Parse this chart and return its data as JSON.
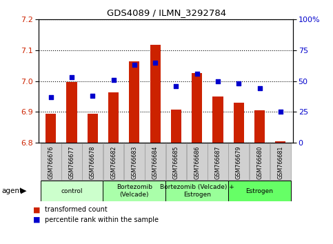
{
  "title": "GDS4089 / ILMN_3292784",
  "samples": [
    "GSM766676",
    "GSM766677",
    "GSM766678",
    "GSM766682",
    "GSM766683",
    "GSM766684",
    "GSM766685",
    "GSM766686",
    "GSM766687",
    "GSM766679",
    "GSM766680",
    "GSM766681"
  ],
  "transformed_count": [
    6.895,
    6.998,
    6.895,
    6.963,
    7.065,
    7.118,
    6.908,
    7.027,
    6.95,
    6.93,
    6.905,
    6.805
  ],
  "percentile_rank": [
    37,
    53,
    38,
    51,
    63,
    65,
    46,
    56,
    50,
    48,
    44,
    25
  ],
  "bar_base": 6.8,
  "ylim_left": [
    6.8,
    7.2
  ],
  "ylim_right": [
    0,
    100
  ],
  "yticks_left": [
    6.8,
    6.9,
    7.0,
    7.1,
    7.2
  ],
  "yticks_right": [
    0,
    25,
    50,
    75,
    100
  ],
  "ytick_labels_right": [
    "0",
    "25",
    "50",
    "75",
    "100%"
  ],
  "groups": [
    {
      "label": "control",
      "start": 0,
      "end": 3,
      "color": "#ccffcc"
    },
    {
      "label": "Bortezomib\n(Velcade)",
      "start": 3,
      "end": 6,
      "color": "#aaffaa"
    },
    {
      "label": "Bortezomib (Velcade) +\nEstrogen",
      "start": 6,
      "end": 9,
      "color": "#99ff99"
    },
    {
      "label": "Estrogen",
      "start": 9,
      "end": 12,
      "color": "#66ff66"
    }
  ],
  "bar_color": "#cc2200",
  "dot_color": "#0000cc",
  "plot_bg": "#ffffff",
  "left_axis_color": "#cc2200",
  "right_axis_color": "#0000cc",
  "tick_box_color": "#d0d0d0",
  "tick_box_edge": "#999999"
}
